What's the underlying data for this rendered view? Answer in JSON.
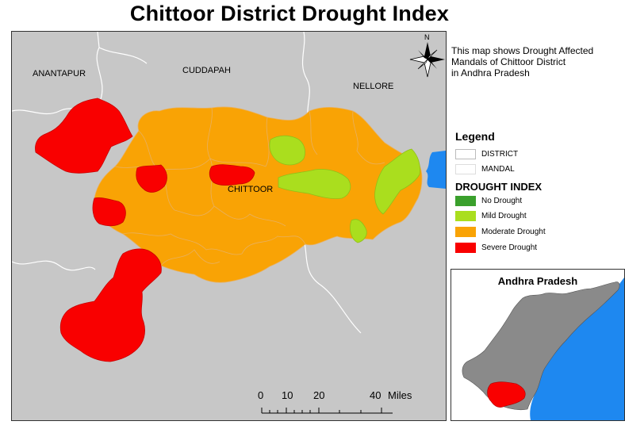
{
  "title": "Chittoor District Drought Index",
  "description_lines": [
    "This map shows Drought Affected",
    "Mandals of Chittoor District",
    "in Andhra Pradesh"
  ],
  "map_labels": {
    "anantapur": "ANANTAPUR",
    "cuddapah": "CUDDAPAH",
    "nellore": "NELLORE",
    "chittoor": "CHITTOOR"
  },
  "north_label": "N",
  "scale": {
    "ticks": [
      "0",
      "10",
      "20",
      "40"
    ],
    "unit": "Miles"
  },
  "legend": {
    "title": "Legend",
    "boundaries": [
      {
        "label": "DISTRICT",
        "color": "#ffffff"
      },
      {
        "label": "MANDAL",
        "color": "#ffffff"
      }
    ],
    "drought_title": "DROUGHT INDEX",
    "classes": [
      {
        "label": "No Drought",
        "color": "#3aa02c"
      },
      {
        "label": "Mild Drought",
        "color": "#aade1e"
      },
      {
        "label": "Moderate Drought",
        "color": "#f9a305"
      },
      {
        "label": "Severe Drought",
        "color": "#f90000"
      }
    ]
  },
  "inset": {
    "title": "Andhra Pradesh",
    "state_color": "#8a8a8a",
    "sea_color": "#1e88f0",
    "highlight_color": "#f90000"
  },
  "colors": {
    "background_land": "#c7c7c7",
    "sea": "#1e88f0",
    "mandal_border": "#e8b060"
  }
}
